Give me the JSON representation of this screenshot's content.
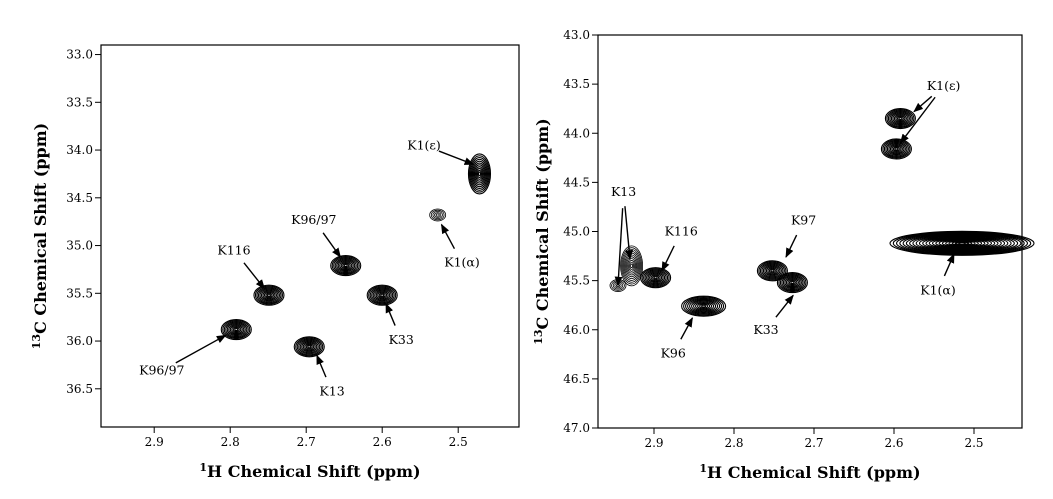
{
  "chart_data": [
    {
      "type": "scatter",
      "subtype": "2D NMR contour spectrum",
      "title": "",
      "xlabel": "<sup>1</sup>H Chemical Shift (ppm)",
      "xlabel_parts": {
        "sup": "1",
        "text": "H Chemical Shift (ppm)"
      },
      "ylabel_parts": {
        "sup": "13",
        "text": "C Chemical Shift (ppm)"
      },
      "xlim": [
        2.97,
        2.42
      ],
      "ylim": [
        36.9,
        32.9
      ],
      "x_reversed": true,
      "y_reversed": true,
      "xticks": [
        "2.9",
        "2.8",
        "2.7",
        "2.6",
        "2.5"
      ],
      "xtick_values": [
        2.9,
        2.8,
        2.7,
        2.6,
        2.5
      ],
      "yticks": [
        "33.0",
        "33.5",
        "34.0",
        "34.5",
        "35.0",
        "35.5",
        "36.0",
        "36.5"
      ],
      "ytick_values": [
        33.0,
        33.5,
        34.0,
        34.5,
        35.0,
        35.5,
        36.0,
        36.5
      ],
      "grid": false,
      "peaks": [
        {
          "x": 2.472,
          "y": 34.25,
          "intensity": "strong",
          "shape": "tall"
        },
        {
          "x": 2.527,
          "y": 34.68,
          "intensity": "weak",
          "shape": "small"
        },
        {
          "x": 2.648,
          "y": 35.21,
          "intensity": "strong",
          "shape": "round"
        },
        {
          "x": 2.749,
          "y": 35.52,
          "intensity": "strong",
          "shape": "round"
        },
        {
          "x": 2.6,
          "y": 35.52,
          "intensity": "strong",
          "shape": "round"
        },
        {
          "x": 2.792,
          "y": 35.88,
          "intensity": "strong",
          "shape": "round"
        },
        {
          "x": 2.696,
          "y": 36.06,
          "intensity": "strong",
          "shape": "round"
        }
      ],
      "annotations": [
        {
          "text": "K1(ε)",
          "x": 2.545,
          "y": 33.95,
          "arrow_to": [
            2.48,
            34.15
          ]
        },
        {
          "text": "K1(α)",
          "x": 2.495,
          "y": 35.18,
          "arrow_to": [
            2.522,
            34.78
          ]
        },
        {
          "text": "K96/97",
          "x": 2.69,
          "y": 34.73,
          "arrow_to": [
            2.655,
            35.12
          ]
        },
        {
          "text": "K116",
          "x": 2.795,
          "y": 35.05,
          "arrow_to": [
            2.755,
            35.45
          ]
        },
        {
          "text": "K33",
          "x": 2.575,
          "y": 35.99,
          "arrow_to": [
            2.595,
            35.61
          ]
        },
        {
          "text": "K96/97",
          "x": 2.89,
          "y": 36.31,
          "arrow_to": [
            2.806,
            35.94
          ]
        },
        {
          "text": "K13",
          "x": 2.666,
          "y": 36.53,
          "arrow_to": [
            2.686,
            36.15
          ]
        }
      ]
    },
    {
      "type": "scatter",
      "subtype": "2D NMR contour spectrum",
      "title": "",
      "xlabel_parts": {
        "sup": "1",
        "text": "H Chemical Shift (ppm)"
      },
      "ylabel_parts": {
        "sup": "13",
        "text": "C Chemical Shift (ppm)"
      },
      "xlim": [
        2.97,
        2.44
      ],
      "ylim": [
        47.0,
        43.0
      ],
      "x_reversed": true,
      "y_reversed": true,
      "xticks": [
        "2.9",
        "2.8",
        "2.7",
        "2.6",
        "2.5"
      ],
      "xtick_values": [
        2.9,
        2.8,
        2.7,
        2.6,
        2.5
      ],
      "yticks": [
        "43.0",
        "43.5",
        "44.0",
        "44.5",
        "45.0",
        "45.5",
        "46.0",
        "46.5",
        "47.0"
      ],
      "ytick_values": [
        43.0,
        43.5,
        44.0,
        44.5,
        45.0,
        45.5,
        46.0,
        46.5,
        47.0
      ],
      "grid": false,
      "peaks": [
        {
          "x": 2.592,
          "y": 43.85,
          "intensity": "strong",
          "shape": "round"
        },
        {
          "x": 2.597,
          "y": 44.16,
          "intensity": "strong",
          "shape": "round"
        },
        {
          "x": 2.515,
          "y": 45.12,
          "intensity": "strong",
          "shape": "broad"
        },
        {
          "x": 2.928,
          "y": 45.35,
          "intensity": "medium",
          "shape": "tall"
        },
        {
          "x": 2.898,
          "y": 45.47,
          "intensity": "strong",
          "shape": "round"
        },
        {
          "x": 2.945,
          "y": 45.55,
          "intensity": "medium",
          "shape": "small"
        },
        {
          "x": 2.838,
          "y": 45.76,
          "intensity": "strong",
          "shape": "wide"
        },
        {
          "x": 2.752,
          "y": 45.4,
          "intensity": "strong",
          "shape": "round"
        },
        {
          "x": 2.727,
          "y": 45.52,
          "intensity": "strong",
          "shape": "round"
        }
      ],
      "annotations": [
        {
          "text": "K1(ε)",
          "x": 2.538,
          "y": 43.52,
          "arrow_to": [
            2.575,
            43.78
          ]
        },
        {
          "text": "K13",
          "x": 2.938,
          "y": 44.6,
          "arrow_to": [
            2.945,
            45.55
          ]
        },
        {
          "text": "K116",
          "x": 2.866,
          "y": 45.0,
          "arrow_to": [
            2.89,
            45.4
          ]
        },
        {
          "text": "K97",
          "x": 2.713,
          "y": 44.89,
          "arrow_to": [
            2.735,
            45.26
          ]
        },
        {
          "text": "K96",
          "x": 2.876,
          "y": 46.24,
          "arrow_to": [
            2.852,
            45.88
          ]
        },
        {
          "text": "K33",
          "x": 2.76,
          "y": 46.0,
          "arrow_to": [
            2.726,
            45.65
          ]
        },
        {
          "text": "K1(α)",
          "x": 2.545,
          "y": 45.6,
          "arrow_to": [
            2.525,
            45.23
          ]
        }
      ]
    }
  ]
}
